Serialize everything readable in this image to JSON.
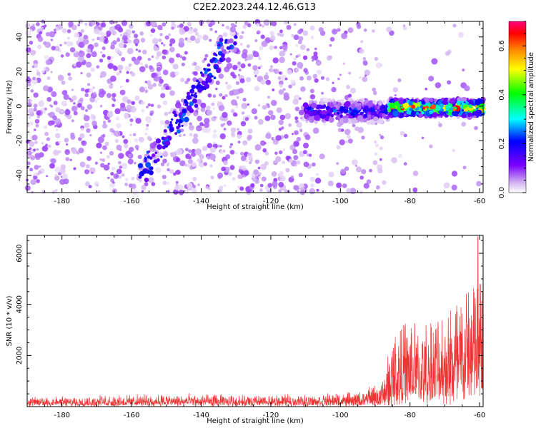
{
  "figure_title": "C2E2.2023.244.12.46.G13",
  "chart_data": [
    {
      "type": "heatmap",
      "xlabel": "Height of straight line (km)",
      "ylabel": "Frequency (Hz)",
      "xlim": [
        -190,
        -59
      ],
      "ylim": [
        -50,
        49
      ],
      "x_ticks": [
        -180,
        -160,
        -140,
        -120,
        -100,
        -80,
        -60
      ],
      "y_ticks": [
        -40,
        -20,
        0,
        20,
        40
      ],
      "colorbar": {
        "label": "Normalized spectral amplitude",
        "range": [
          0,
          0.7
        ],
        "ticks": [
          0.0,
          0.2,
          0.4,
          0.6
        ],
        "colormap": [
          "#ffffff",
          "#d0b0f0",
          "#7a00ff",
          "#0000ff",
          "#00ffff",
          "#00ff00",
          "#ffff00",
          "#ff8000",
          "#ff0000",
          "#ff0080"
        ]
      },
      "features": [
        {
          "name": "background",
          "x_range": [
            -190,
            -110
          ],
          "freq_range": [
            -50,
            49
          ],
          "amplitude": 0.05
        },
        {
          "name": "diagonal-streak",
          "from": [
            -157,
            -40
          ],
          "to": [
            -131,
            40
          ],
          "amplitude": 0.18
        },
        {
          "name": "low-freq-band",
          "x_range": [
            -110,
            -86
          ],
          "freq_center": -3,
          "freq_width": 10,
          "amplitude": 0.2
        },
        {
          "name": "strong-band",
          "x_range": [
            -86,
            -59
          ],
          "freq_center": -1,
          "freq_width": 8,
          "amplitude": 0.55
        }
      ]
    },
    {
      "type": "line",
      "xlabel": "Height of straight line (km)",
      "ylabel": "SNR (10 * v/v)",
      "xlim": [
        -190,
        -59
      ],
      "ylim": [
        0,
        6700
      ],
      "x_ticks": [
        -180,
        -160,
        -140,
        -120,
        -100,
        -80,
        -60
      ],
      "y_ticks": [
        2000,
        4000,
        6000
      ],
      "series_color": "#ee3333",
      "envelope": [
        {
          "x": -190,
          "base": 150,
          "spread": 250
        },
        {
          "x": -150,
          "base": 200,
          "spread": 350
        },
        {
          "x": -120,
          "base": 180,
          "spread": 300
        },
        {
          "x": -95,
          "base": 200,
          "spread": 400
        },
        {
          "x": -88,
          "base": 300,
          "spread": 800
        },
        {
          "x": -84,
          "base": 700,
          "spread": 3000
        },
        {
          "x": -75,
          "base": 900,
          "spread": 2800
        },
        {
          "x": -68,
          "base": 1200,
          "spread": 3500
        },
        {
          "x": -62,
          "base": 1400,
          "spread": 4500
        },
        {
          "x": -59,
          "base": 1500,
          "spread": 5200
        }
      ],
      "peak": {
        "x": -60.5,
        "y": 6650
      }
    }
  ]
}
